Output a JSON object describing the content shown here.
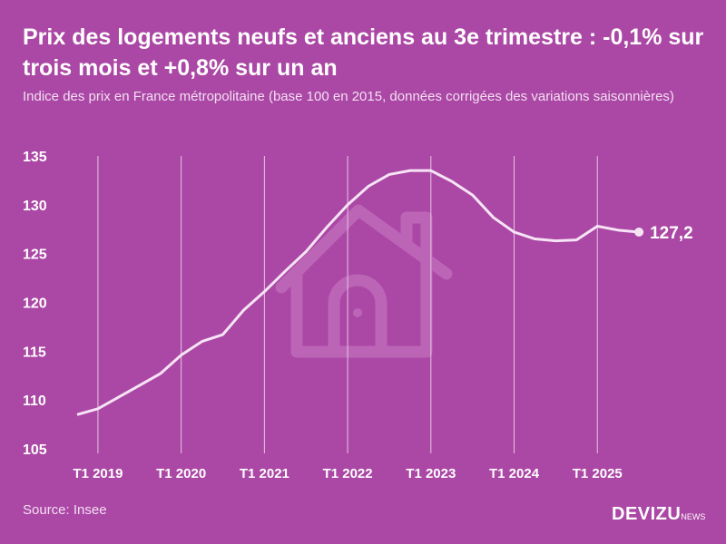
{
  "header": {
    "title": "Prix des logements neufs et anciens au 3e trimestre : -0,1% sur trois mois et +0,8% sur un an",
    "subtitle": "Indice des prix en France métropolitaine (base 100 en 2015, données corrigées des variations saisonnières)"
  },
  "footer": {
    "source": "Source: Insee",
    "logo_main": "DEVIZU",
    "logo_sub": "NEWS"
  },
  "colors": {
    "background": "#ab47a5",
    "line": "#f6e4f5",
    "grid": "#e7c6e4",
    "watermark": "#c06bbb"
  },
  "chart_data": {
    "type": "line",
    "title": "",
    "xlabel": "",
    "ylabel": "",
    "ylim": [
      105,
      135
    ],
    "yticks": [
      105,
      110,
      115,
      120,
      125,
      130,
      135
    ],
    "xtick_labels": [
      "T1 2019",
      "T1 2020",
      "T1 2021",
      "T1 2022",
      "T1 2023",
      "T1 2024",
      "T1 2025"
    ],
    "grid": "vertical at T1 of each year",
    "x": [
      "T4 2018",
      "T1 2019",
      "T2 2019",
      "T3 2019",
      "T4 2019",
      "T1 2020",
      "T2 2020",
      "T3 2020",
      "T4 2020",
      "T1 2021",
      "T2 2021",
      "T3 2021",
      "T4 2021",
      "T1 2022",
      "T2 2022",
      "T3 2022",
      "T4 2022",
      "T1 2023",
      "T2 2023",
      "T3 2023",
      "T4 2023",
      "T1 2024",
      "T2 2024",
      "T3 2024",
      "T4 2024",
      "T1 2025",
      "T2 2025",
      "T3 2025"
    ],
    "values": [
      108.5,
      109.1,
      110.3,
      111.5,
      112.7,
      114.6,
      116.0,
      116.7,
      119.2,
      121.1,
      123.2,
      125.2,
      127.7,
      130.0,
      131.9,
      133.1,
      133.5,
      133.5,
      132.4,
      131.0,
      128.7,
      127.2,
      126.5,
      126.3,
      126.4,
      127.8,
      127.4,
      127.2
    ],
    "end_label": "127,2"
  }
}
